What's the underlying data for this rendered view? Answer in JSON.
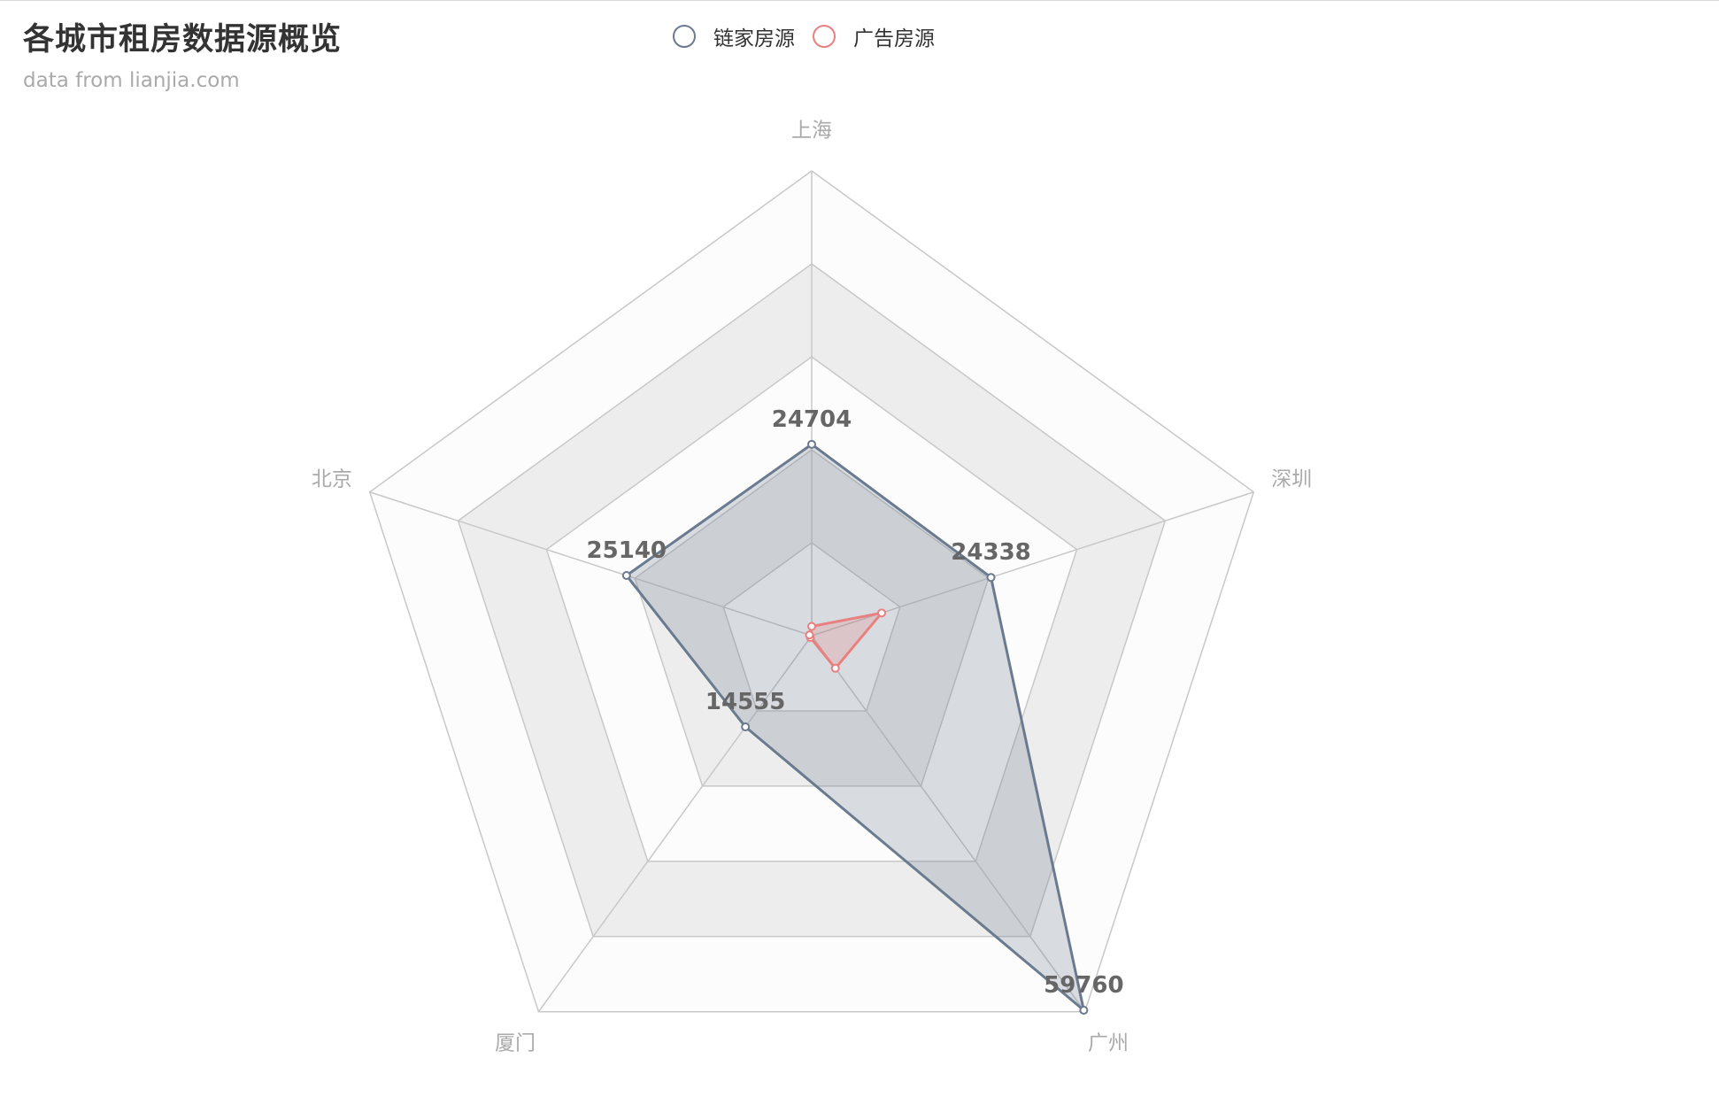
{
  "title": "各城市租房数据源概览",
  "subtitle": "data from lianjia.com",
  "legend": [
    {
      "name": "链家房源",
      "color": "#6b7b8f"
    },
    {
      "name": "广告房源",
      "color": "#e98080"
    }
  ],
  "chart_data": {
    "type": "radar",
    "indicators": [
      "上海",
      "深圳",
      "广州",
      "厦门",
      "北京"
    ],
    "max": 60000,
    "split_number": 5,
    "series": [
      {
        "name": "链家房源",
        "color": "#6b7b8f",
        "values": [
          24704,
          24338,
          59760,
          14555,
          25140
        ],
        "show_labels": true
      },
      {
        "name": "广告房源",
        "color": "#e98080",
        "values": [
          1200,
          9500,
          5200,
          300,
          300
        ],
        "show_labels": false
      }
    ],
    "split_area_colors": [
      "#fcfcfc",
      "#ededed"
    ],
    "split_line_color": "#c8c8c8"
  }
}
